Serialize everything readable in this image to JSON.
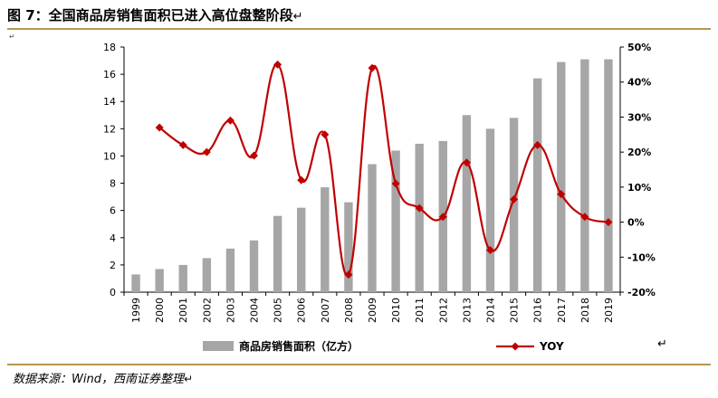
{
  "header": {
    "title": "图 7：全国商品房销售面积已进入高位盘整阶段",
    "return_mark": "↵"
  },
  "body_mark": "↵",
  "footer": {
    "source": "数据来源：Wind，西南证券整理",
    "return_mark": "↵"
  },
  "legend_return_mark": "↵",
  "chart_data": {
    "type": "bar+line",
    "categories": [
      "1999",
      "2000",
      "2001",
      "2002",
      "2003",
      "2004",
      "2005",
      "2006",
      "2007",
      "2008",
      "2009",
      "2010",
      "2011",
      "2012",
      "2013",
      "2014",
      "2015",
      "2016",
      "2017",
      "2018",
      "2019"
    ],
    "series": [
      {
        "name": "商品房销售面积（亿方）",
        "type": "bar",
        "axis": "left",
        "color": "#a6a6a6",
        "values": [
          1.3,
          1.7,
          2.0,
          2.5,
          3.2,
          3.8,
          5.6,
          6.2,
          7.7,
          6.6,
          9.4,
          10.4,
          10.9,
          11.1,
          13.0,
          12.0,
          12.8,
          15.7,
          16.9,
          17.1,
          17.1
        ]
      },
      {
        "name": "YOY",
        "type": "line",
        "axis": "right",
        "color": "#c00000",
        "values": [
          null,
          27,
          22,
          20,
          29,
          19,
          45,
          12,
          25,
          -15,
          44,
          11,
          4,
          1.5,
          17,
          -8,
          6.5,
          22,
          8,
          1.5,
          0
        ]
      }
    ],
    "y_left": {
      "min": 0,
      "max": 18,
      "step": 2,
      "ticks": [
        "0",
        "2",
        "4",
        "6",
        "8",
        "10",
        "12",
        "14",
        "16",
        "18"
      ]
    },
    "y_right": {
      "min": -20,
      "max": 50,
      "step": 10,
      "ticks": [
        "-20%",
        "-10%",
        "0%",
        "10%",
        "20%",
        "30%",
        "40%",
        "50%"
      ]
    },
    "grid": false,
    "legend_position": "bottom"
  }
}
